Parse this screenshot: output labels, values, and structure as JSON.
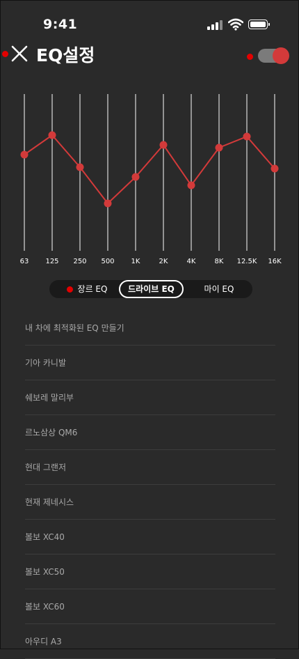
{
  "status_bar": {
    "time": "9:41"
  },
  "header": {
    "title": "EQ설정",
    "toggle_on": true
  },
  "colors": {
    "accent": "#d33a3a",
    "record_dot": "#e30000",
    "background": "#2a2a2a"
  },
  "icons": {
    "close": "close-icon",
    "signal": "cellular-signal-icon",
    "wifi": "wifi-icon",
    "battery": "battery-icon"
  },
  "chart_data": {
    "type": "line",
    "categories": [
      "63",
      "125",
      "250",
      "500",
      "1K",
      "2K",
      "4K",
      "8K",
      "12.5K",
      "16K"
    ],
    "values": [
      0.52,
      0.66,
      0.43,
      0.17,
      0.36,
      0.59,
      0.3,
      0.57,
      0.65,
      0.42
    ],
    "ylim": [
      0,
      1
    ],
    "title": "",
    "xlabel": "",
    "ylabel": ""
  },
  "eq_tabs": [
    {
      "label": "장르 EQ",
      "active": false
    },
    {
      "label": "드라이브 EQ",
      "active": true
    },
    {
      "label": "마이 EQ",
      "active": false
    }
  ],
  "car_list": [
    "내 차에 최적화된 EQ 만들기",
    "기아 카니발",
    "쉐보레 말리부",
    "르노삼상 QM6",
    "현대 그랜저",
    "현재 제네시스",
    "볼보 XC40",
    "볼보 XC50",
    "볼보 XC60",
    "아우디 A3"
  ]
}
